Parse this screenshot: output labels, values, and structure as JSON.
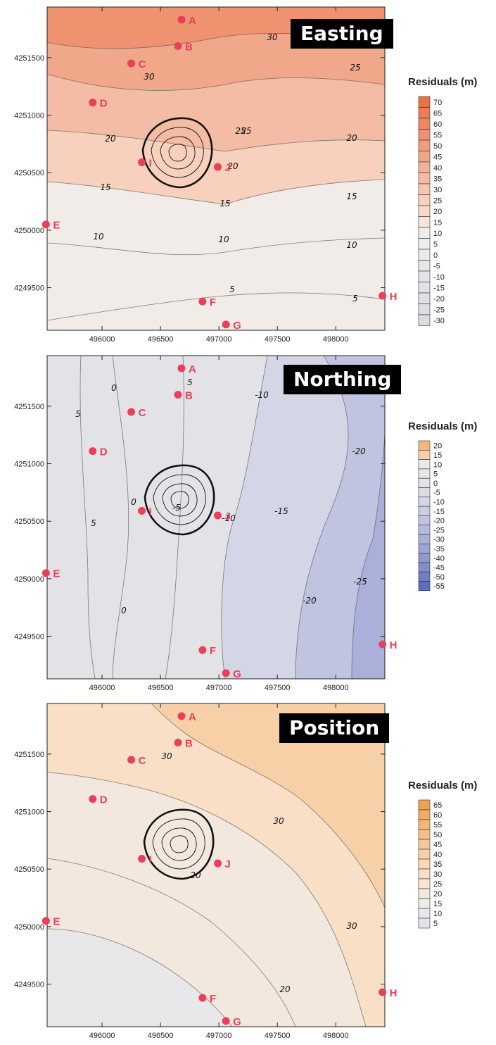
{
  "panels": [
    {
      "title": "Easting",
      "legend": {
        "title": "Residuals (m)",
        "labels": [
          "70",
          "65",
          "60",
          "55",
          "50",
          "45",
          "40",
          "35",
          "30",
          "25",
          "20",
          "15",
          "10",
          "5",
          "0",
          "-5",
          "-10",
          "-15",
          "-20",
          "-25",
          "-30"
        ],
        "colors": [
          "#e8714a",
          "#ea7c57",
          "#ec8763",
          "#ee9270",
          "#f09d7d",
          "#f1a78a",
          "#f3b297",
          "#f4bca4",
          "#f6c6b1",
          "#f7d0be",
          "#f8d9cb",
          "#f9e2d8",
          "#f2ece8",
          "#eeeeef",
          "#eaeaec",
          "#e7e7ea",
          "#e4e4e8",
          "#e2e2e6",
          "#e0e0e4",
          "#dedee2",
          "#dcdce0"
        ]
      },
      "contour_labels": [
        "30",
        "25",
        "30",
        "25",
        "25",
        "20",
        "20",
        "20",
        "15",
        "15",
        "15",
        "10",
        "10",
        "10",
        "5",
        "5"
      ]
    },
    {
      "title": "Northing",
      "legend": {
        "title": "Residuals (m)",
        "labels": [
          "20",
          "15",
          "10",
          "5",
          "0",
          "-5",
          "-10",
          "-15",
          "-20",
          "-25",
          "-30",
          "-35",
          "-40",
          "-45",
          "-50",
          "-55"
        ],
        "colors": [
          "#f6b780",
          "#f8cfa8",
          "#e9e9ea",
          "#e6e6e9",
          "#e3e3e7",
          "#dcdce6",
          "#d4d5e5",
          "#cbcde3",
          "#c1c4e0",
          "#b6badd",
          "#aab0da",
          "#9da5d6",
          "#8f99d1",
          "#808ccb",
          "#6f7ec5",
          "#5c6ebe"
        ]
      },
      "contour_labels": [
        "0",
        "5",
        "5",
        "0",
        "-5",
        "-10",
        "-10",
        "-15",
        "-20",
        "-20",
        "-25",
        "5",
        "0"
      ]
    },
    {
      "title": "Position",
      "legend": {
        "title": "Residuals (m)",
        "labels": [
          "65",
          "60",
          "55",
          "50",
          "45",
          "40",
          "35",
          "30",
          "25",
          "20",
          "15",
          "10",
          "5"
        ],
        "colors": [
          "#f0a050",
          "#f2ab63",
          "#f4b576",
          "#f5bf88",
          "#f6c898",
          "#f7d0a8",
          "#f8d8b8",
          "#f8dfc6",
          "#f8e5d2",
          "#f3e8de",
          "#ececea",
          "#e8e8ea",
          "#e4e4e8"
        ]
      },
      "contour_labels": [
        "30",
        "30",
        "20",
        "30",
        "20"
      ]
    }
  ],
  "x_ticks": [
    "496000",
    "496500",
    "497000",
    "497500",
    "498000"
  ],
  "y_ticks": [
    "4251500",
    "4251000",
    "4250500",
    "4250000",
    "4249500"
  ],
  "points": [
    {
      "label": "A",
      "x": 496680,
      "y": 4251830
    },
    {
      "label": "B",
      "x": 496650,
      "y": 4251600
    },
    {
      "label": "C",
      "x": 496250,
      "y": 4251450
    },
    {
      "label": "D",
      "x": 495920,
      "y": 4251110
    },
    {
      "label": "E",
      "x": 495520,
      "y": 4250050
    },
    {
      "label": "F",
      "x": 496860,
      "y": 4249380
    },
    {
      "label": "G",
      "x": 497060,
      "y": 4249180
    },
    {
      "label": "H",
      "x": 498400,
      "y": 4249430
    },
    {
      "label": "I",
      "x": 496340,
      "y": 4250590
    },
    {
      "label": "J",
      "x": 496990,
      "y": 4250550
    }
  ],
  "colors": {
    "point": "#e8405a",
    "contour": "#555555"
  }
}
